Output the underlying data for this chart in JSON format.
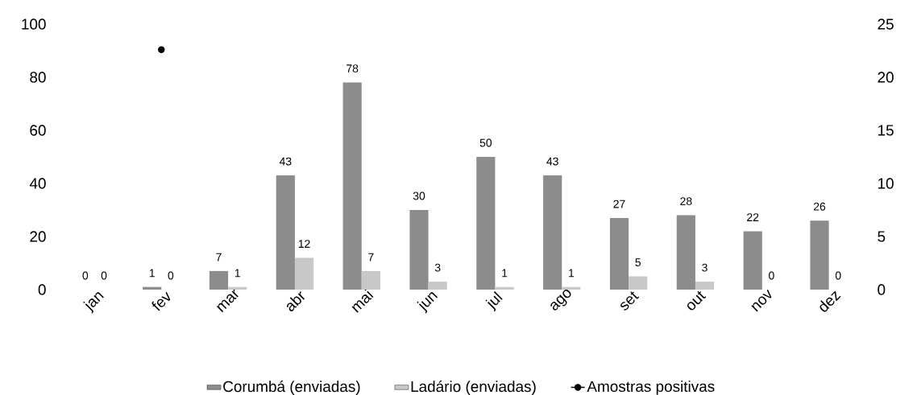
{
  "chart_data": {
    "type": "bar",
    "categories": [
      "jan",
      "fev",
      "mar",
      "abr",
      "mai",
      "jun",
      "jul",
      "ago",
      "set",
      "out",
      "nov",
      "dez"
    ],
    "series": [
      {
        "name": "Corumbá (enviadas)",
        "color": "#8c8c8c",
        "values": [
          0,
          1,
          7,
          43,
          78,
          30,
          50,
          43,
          27,
          28,
          22,
          26
        ],
        "value_labels": [
          "0",
          "1",
          "7",
          "43",
          "78",
          "30",
          "50",
          "43",
          "27",
          "28",
          "22",
          "26"
        ]
      },
      {
        "name": "Ladário (enviadas)",
        "color": "#c8c8c8",
        "values": [
          0,
          0,
          1,
          12,
          7,
          3,
          1,
          1,
          5,
          3,
          0,
          0
        ],
        "value_labels": [
          "0",
          "0",
          "1",
          "12",
          "7",
          "3",
          "1",
          "1",
          "5",
          "3",
          "0",
          "0"
        ]
      },
      {
        "name": "Amostras positivas",
        "type": "line",
        "axis": "y2",
        "color": "#000000",
        "marker": "circle",
        "values": [
          null,
          22.6,
          null,
          null,
          null,
          null,
          null,
          null,
          null,
          null,
          null,
          null
        ]
      }
    ],
    "ylim": [
      0,
      100
    ],
    "yticks": [
      0,
      20,
      40,
      60,
      80,
      100
    ],
    "y2lim": [
      0,
      25
    ],
    "y2ticks": [
      0,
      5,
      10,
      15,
      20,
      25
    ],
    "grid": false,
    "legend": "bottom"
  }
}
